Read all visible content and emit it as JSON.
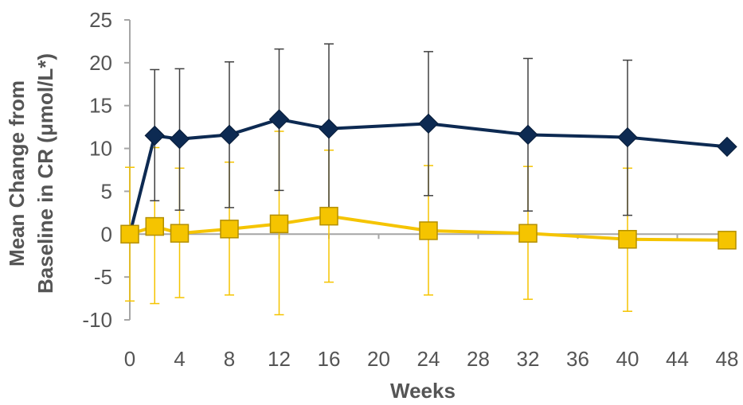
{
  "chart_data": {
    "type": "line",
    "xlabel": "Weeks",
    "ylabel": [
      "Mean Change from",
      "Baseline in CR (μmol/L*)"
    ],
    "xlim": [
      0,
      48
    ],
    "ylim": [
      -10,
      25
    ],
    "x_ticks": [
      "0",
      "4",
      "8",
      "12",
      "16",
      "20",
      "24",
      "28",
      "32",
      "36",
      "40",
      "44",
      "48"
    ],
    "y_ticks": [
      "25",
      "20",
      "15",
      "10",
      "5",
      "0",
      "-5",
      "-10"
    ],
    "grid": false,
    "colors": {
      "dark_series": "#0d2a52",
      "gold_series": "#f5c400",
      "axis": "#a6a6a6",
      "error_dark": "#404040",
      "error_gold": "#f5c400"
    },
    "series": [
      {
        "color": "#0d2a52",
        "marker": "diamond",
        "points": [
          {
            "x": 0,
            "y": 0,
            "err_low": null,
            "err_high": null
          },
          {
            "x": 2,
            "y": 11.5,
            "err_low": 3.9,
            "err_high": 19.2
          },
          {
            "x": 4,
            "y": 11.1,
            "err_low": 2.8,
            "err_high": 19.3
          },
          {
            "x": 8,
            "y": 11.6,
            "err_low": 3.1,
            "err_high": 20.1
          },
          {
            "x": 12,
            "y": 13.4,
            "err_low": 5.1,
            "err_high": 21.6
          },
          {
            "x": 16,
            "y": 12.3,
            "err_low": 2.5,
            "err_high": 22.2
          },
          {
            "x": 24,
            "y": 12.9,
            "err_low": 4.5,
            "err_high": 21.3
          },
          {
            "x": 32,
            "y": 11.6,
            "err_low": 2.7,
            "err_high": 20.5
          },
          {
            "x": 40,
            "y": 11.3,
            "err_low": 2.2,
            "err_high": 20.3
          },
          {
            "x": 48,
            "y": 10.2,
            "err_low": null,
            "err_high": null
          }
        ]
      },
      {
        "color": "#f5c400",
        "marker": "square",
        "points": [
          {
            "x": 0,
            "y": 0,
            "err_low": -7.8,
            "err_high": 7.8
          },
          {
            "x": 2,
            "y": 0.9,
            "err_low": -8.1,
            "err_high": 10.1
          },
          {
            "x": 4,
            "y": 0.1,
            "err_low": -7.4,
            "err_high": 7.7
          },
          {
            "x": 8,
            "y": 0.6,
            "err_low": -7.1,
            "err_high": 8.4
          },
          {
            "x": 12,
            "y": 1.2,
            "err_low": -9.4,
            "err_high": 12.0
          },
          {
            "x": 16,
            "y": 2.1,
            "err_low": -5.6,
            "err_high": 9.8
          },
          {
            "x": 24,
            "y": 0.4,
            "err_low": -7.1,
            "err_high": 8.0
          },
          {
            "x": 32,
            "y": 0.1,
            "err_low": -7.6,
            "err_high": 7.9
          },
          {
            "x": 40,
            "y": -0.6,
            "err_low": -9.0,
            "err_high": 7.7
          },
          {
            "x": 48,
            "y": -0.7,
            "err_low": null,
            "err_high": null
          }
        ]
      }
    ]
  }
}
